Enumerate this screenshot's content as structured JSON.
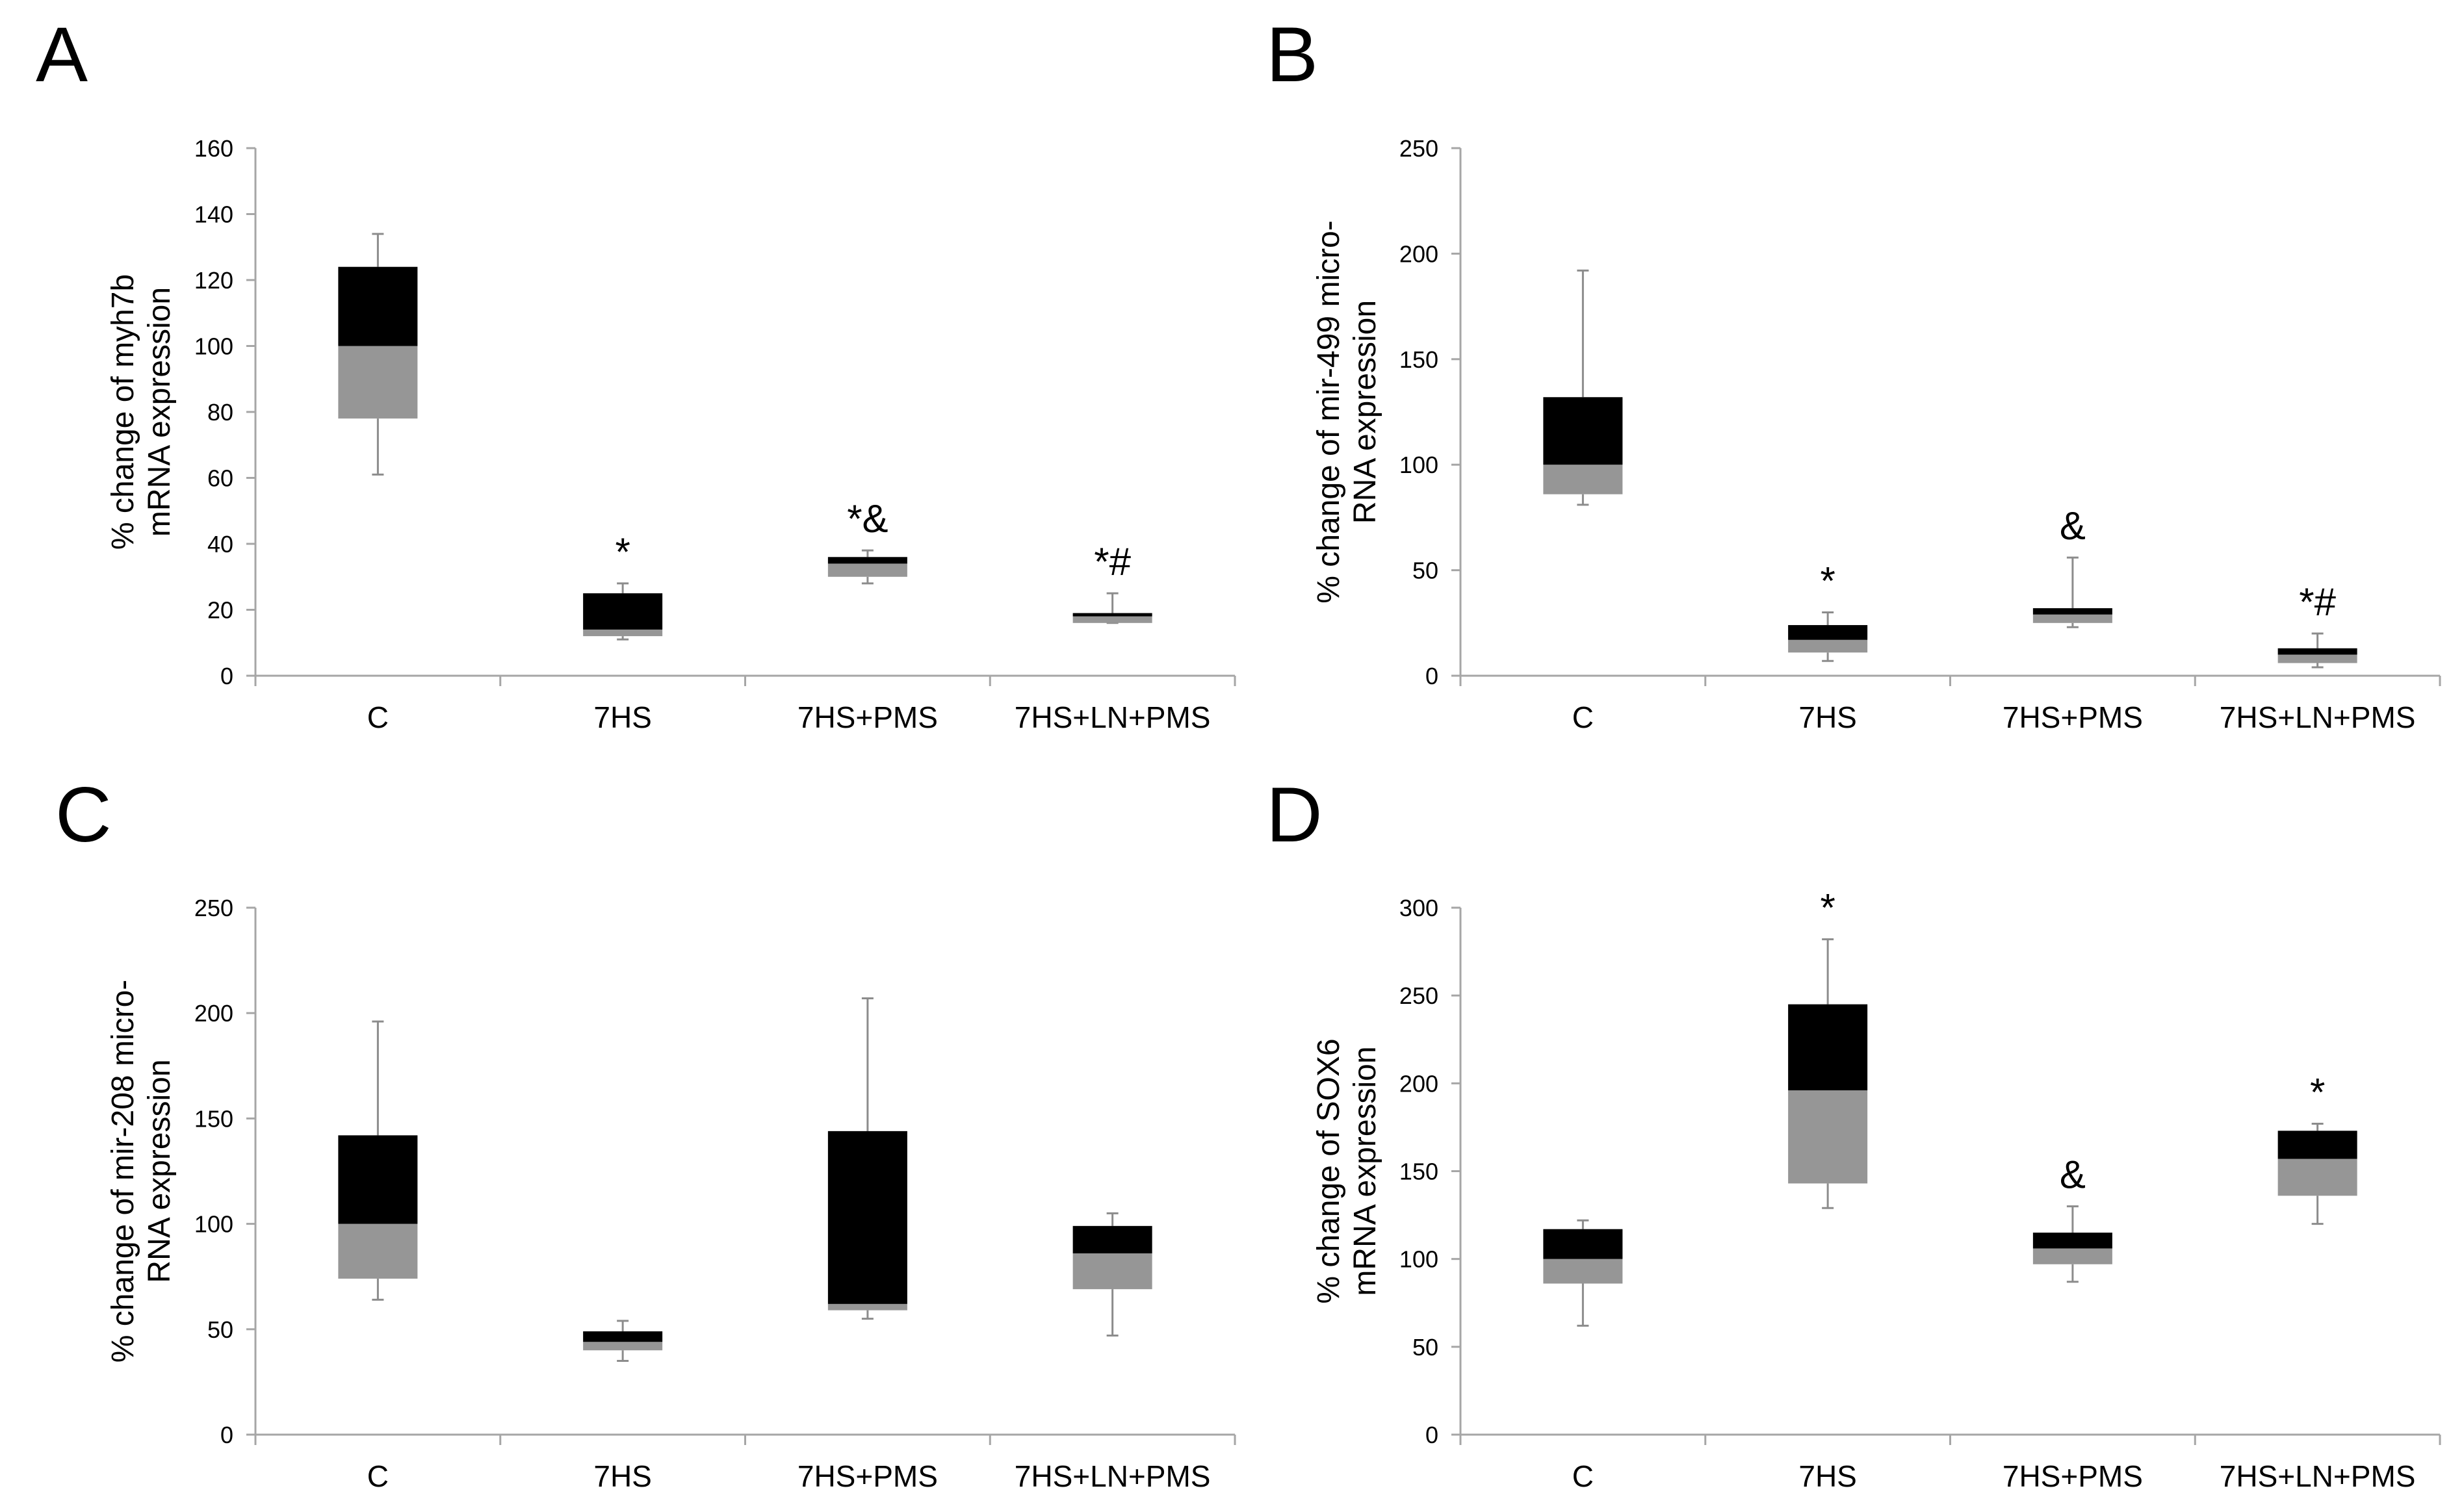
{
  "figure": {
    "colors": {
      "upper_box": "#000000",
      "lower_box": "#969696",
      "axis": "#a6a6a6",
      "whisker": "#8c8c8c",
      "text": "#000000"
    }
  },
  "chart_data": [
    {
      "panel": "A",
      "type": "box",
      "ylabel": [
        "% change of myh7b",
        "mRNA expression"
      ],
      "ylim": [
        0,
        160
      ],
      "yticks": [
        0,
        20,
        40,
        60,
        80,
        100,
        120,
        140,
        160
      ],
      "categories": [
        "C",
        "7HS",
        "7HS+PMS",
        "7HS+LN+PMS"
      ],
      "boxes": [
        {
          "min": 61,
          "q1": 78,
          "median": 100,
          "q3": 124,
          "max": 134
        },
        {
          "min": 11,
          "q1": 12,
          "median": 14,
          "q3": 25,
          "max": 28
        },
        {
          "min": 28,
          "q1": 30,
          "median": 34,
          "q3": 36,
          "max": 38
        },
        {
          "min": 16,
          "q1": 16,
          "median": 18,
          "q3": 19,
          "max": 25
        }
      ],
      "annotations": [
        "",
        "*",
        "*&",
        "*#"
      ]
    },
    {
      "panel": "B",
      "type": "box",
      "ylabel": [
        "% change of mir-499 micro-",
        "RNA expression"
      ],
      "ylim": [
        0,
        250
      ],
      "yticks": [
        0,
        50,
        100,
        150,
        200,
        250
      ],
      "categories": [
        "C",
        "7HS",
        "7HS+PMS",
        "7HS+LN+PMS"
      ],
      "boxes": [
        {
          "min": 81,
          "q1": 86,
          "median": 100,
          "q3": 132,
          "max": 192
        },
        {
          "min": 7,
          "q1": 11,
          "median": 17,
          "q3": 24,
          "max": 30
        },
        {
          "min": 23,
          "q1": 25,
          "median": 29,
          "q3": 32,
          "max": 56
        },
        {
          "min": 4,
          "q1": 6,
          "median": 10,
          "q3": 13,
          "max": 20
        }
      ],
      "annotations": [
        "",
        "*",
        "&",
        "*#"
      ]
    },
    {
      "panel": "C",
      "type": "box",
      "ylabel": [
        "% change of mir-208 micro-",
        "RNA expression"
      ],
      "ylim": [
        0,
        250
      ],
      "yticks": [
        0,
        50,
        100,
        150,
        200,
        250
      ],
      "categories": [
        "C",
        "7HS",
        "7HS+PMS",
        "7HS+LN+PMS"
      ],
      "boxes": [
        {
          "min": 64,
          "q1": 74,
          "median": 100,
          "q3": 142,
          "max": 196
        },
        {
          "min": 35,
          "q1": 40,
          "median": 44,
          "q3": 49,
          "max": 54
        },
        {
          "min": 55,
          "q1": 59,
          "median": 62,
          "q3": 144,
          "max": 207
        },
        {
          "min": 47,
          "q1": 69,
          "median": 86,
          "q3": 99,
          "max": 105
        }
      ],
      "annotations": [
        "",
        "",
        "",
        ""
      ]
    },
    {
      "panel": "D",
      "type": "box",
      "ylabel": [
        "% change of SOX6",
        "mRNA expression"
      ],
      "ylim": [
        0,
        300
      ],
      "yticks": [
        0,
        50,
        100,
        150,
        200,
        250,
        300
      ],
      "categories": [
        "C",
        "7HS",
        "7HS+PMS",
        "7HS+LN+PMS"
      ],
      "boxes": [
        {
          "min": 62,
          "q1": 86,
          "median": 100,
          "q3": 117,
          "max": 122
        },
        {
          "min": 129,
          "q1": 143,
          "median": 196,
          "q3": 245,
          "max": 282
        },
        {
          "min": 87,
          "q1": 97,
          "median": 106,
          "q3": 115,
          "max": 130
        },
        {
          "min": 120,
          "q1": 136,
          "median": 157,
          "q3": 173,
          "max": 177
        }
      ],
      "annotations": [
        "",
        "*",
        "&",
        "*"
      ]
    }
  ]
}
